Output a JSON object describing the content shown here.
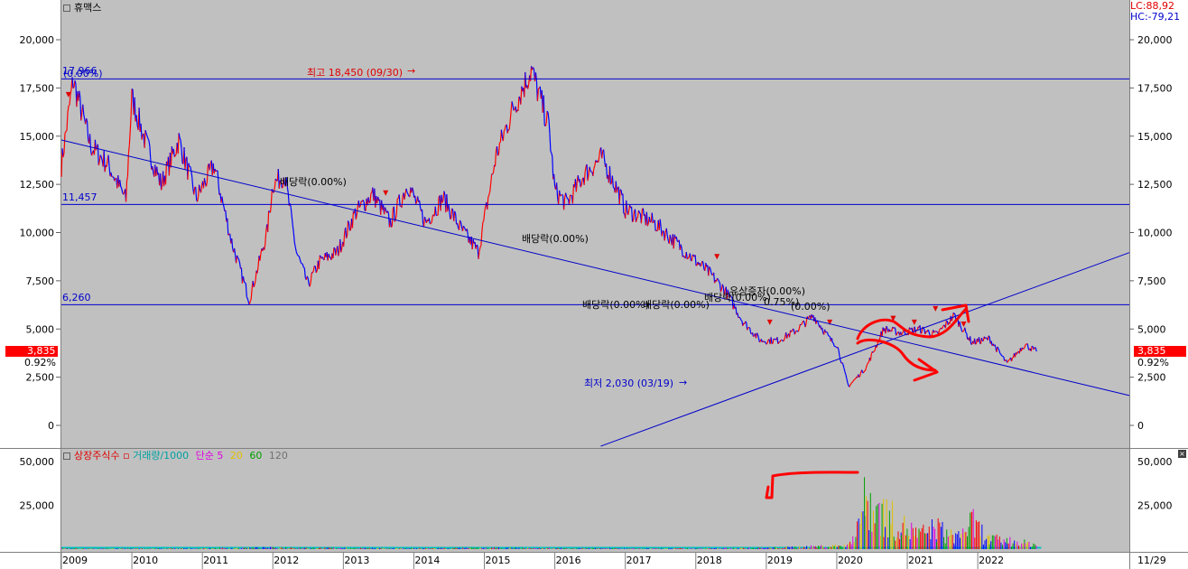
{
  "title": "휴맥스",
  "indicator": {
    "lc": "LC:88,92",
    "hc": "HC:-79,21"
  },
  "current": {
    "price": "3,835",
    "change": "0.92%"
  },
  "colors": {
    "panel": "#c0c0c0",
    "up": "#ff0000",
    "down": "#0000ff",
    "hline": "#0000cc",
    "trend": "#0000cc",
    "annot_red": "#e00000",
    "annot_blue": "#0000cc",
    "current_bg": "#ff0000",
    "drawing": "#ff0000",
    "vol_line": "#00bfbf"
  },
  "price_axis": {
    "ticks": [
      "20,000",
      "17,500",
      "15,000",
      "12,500",
      "10,000",
      "7,500",
      "5,000",
      "2,500",
      "0"
    ]
  },
  "volume_axis": {
    "ticks": [
      "50,000",
      "25,000"
    ]
  },
  "x_axis": {
    "years": [
      "2009",
      "2010",
      "2011",
      "2012",
      "2013",
      "2014",
      "2015",
      "2016",
      "2017",
      "2018",
      "2019",
      "2020",
      "2021",
      "2022"
    ],
    "last_date": "11/29"
  },
  "hlines": [
    {
      "value": 17966,
      "label": "17,966"
    },
    {
      "value": 11457,
      "label": "11,457"
    },
    {
      "value": 6260,
      "label": "6,260"
    }
  ],
  "annotations": {
    "high": "최고 18,450 (09/30)",
    "low": "최저 2,030 (03/19)",
    "first_pct": "(0.00%)",
    "div1": "배당락(0.00%)",
    "div2": "배당락(0.00%)",
    "div3": "배당락(0.00%)",
    "div4": "배당락(0.00%)",
    "div5": "배당락(0.00%)",
    "cap_inc": "유상증자(0.00%)",
    "pct1": "0.75%)",
    "pct2": "(0.00%)"
  },
  "volume_legend": {
    "shares": "상장주식수",
    "volume": "거래량/1000",
    "ma": "단순",
    "p5": "5",
    "p20": "20",
    "p60": "60",
    "p120": "120"
  },
  "chart_data": {
    "type": "line",
    "title": "휴맥스",
    "ylim": [
      -1200,
      22000
    ],
    "x_range": [
      "2009-01",
      "2024-02"
    ],
    "series": [
      {
        "x": [
          "2009-01",
          "2009-03",
          "2009-06",
          "2009-09",
          "2009-12",
          "2010-01",
          "2010-03",
          "2010-06",
          "2010-09",
          "2010-12",
          "2011-03",
          "2011-06",
          "2011-09",
          "2011-12",
          "2012-01",
          "2012-03",
          "2012-05",
          "2012-07",
          "2012-09",
          "2012-12",
          "2013-03",
          "2013-06",
          "2013-09",
          "2013-12",
          "2014-03",
          "2014-06",
          "2014-09",
          "2014-12",
          "2015-03",
          "2015-06",
          "2015-09",
          "2015-12",
          "2016-01",
          "2016-03",
          "2016-06",
          "2016-09",
          "2016-12",
          "2017-01",
          "2017-06",
          "2017-12",
          "2018-03",
          "2018-06",
          "2018-09",
          "2018-12",
          "2019-03",
          "2019-06",
          "2019-09",
          "2019-12",
          "2020-01",
          "2020-03",
          "2020-06",
          "2020-09",
          "2020-12",
          "2021-03",
          "2021-06",
          "2021-09",
          "2021-12",
          "2022-03",
          "2022-06",
          "2022-09",
          "2022-11"
        ],
        "values": [
          13500,
          17900,
          14500,
          13500,
          11700,
          17000,
          15000,
          12500,
          14800,
          11800,
          13500,
          9500,
          6500,
          10000,
          12500,
          13000,
          9000,
          7300,
          8500,
          9000,
          11000,
          12000,
          10500,
          12500,
          10500,
          11800,
          10200,
          9000,
          14000,
          16500,
          18450,
          15500,
          12200,
          11500,
          13000,
          13900,
          12000,
          11200,
          10500,
          8800,
          8000,
          7000,
          5400,
          4400,
          4400,
          4900,
          5700,
          4400,
          4200,
          2030,
          3000,
          5000,
          4800,
          5000,
          4700,
          5700,
          4300,
          4500,
          3200,
          4200,
          3835
        ]
      }
    ],
    "volume": {
      "x": [
        "2009",
        "2010",
        "2011",
        "2012",
        "2013",
        "2014",
        "2015",
        "2016",
        "2017",
        "2018",
        "2019",
        "2020-03",
        "2020-06",
        "2020-09",
        "2020-12",
        "2021-03",
        "2021-06",
        "2021-09",
        "2021-12",
        "2022-03",
        "2022-06",
        "2022-09",
        "2022-11"
      ],
      "values": [
        500,
        400,
        600,
        1200,
        800,
        600,
        900,
        700,
        500,
        600,
        900,
        3000,
        42000,
        30000,
        20000,
        12000,
        18000,
        9000,
        22000,
        8000,
        7000,
        5000,
        4000
      ]
    }
  }
}
